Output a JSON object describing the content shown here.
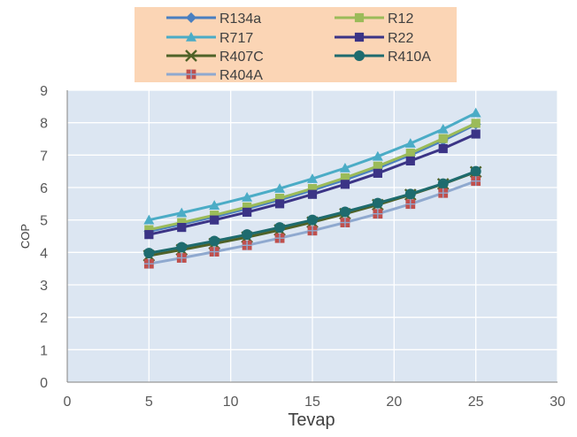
{
  "chart_data": {
    "type": "line",
    "xlabel": "Tevap",
    "ylabel": "COP",
    "xlim": [
      0,
      30
    ],
    "ylim": [
      0,
      9
    ],
    "xticks": [
      0,
      5,
      10,
      15,
      20,
      25,
      30
    ],
    "yticks": [
      0,
      1,
      2,
      3,
      4,
      5,
      6,
      7,
      8,
      9
    ],
    "grid": true,
    "legend_position": "top",
    "x": [
      5,
      7,
      9,
      11,
      13,
      15,
      17,
      19,
      21,
      23,
      25
    ],
    "series": [
      {
        "name": "R134a",
        "color": "#4a7fc0",
        "marker": "diamond",
        "values": [
          4.65,
          4.87,
          5.1,
          5.35,
          5.62,
          5.92,
          6.24,
          6.6,
          7.0,
          7.45,
          7.95
        ]
      },
      {
        "name": "R12",
        "color": "#9bbb59",
        "marker": "square",
        "values": [
          4.7,
          4.92,
          5.15,
          5.4,
          5.67,
          5.97,
          6.3,
          6.66,
          7.06,
          7.51,
          7.98
        ]
      },
      {
        "name": "R717",
        "color": "#4bacc6",
        "marker": "triangle",
        "values": [
          5.0,
          5.22,
          5.45,
          5.7,
          5.97,
          6.27,
          6.6,
          6.96,
          7.36,
          7.8,
          8.3
        ]
      },
      {
        "name": "R22",
        "color": "#3b3486",
        "marker": "square",
        "values": [
          4.55,
          4.77,
          5.0,
          5.24,
          5.5,
          5.79,
          6.1,
          6.44,
          6.82,
          7.2,
          7.65
        ]
      },
      {
        "name": "R407C",
        "color": "#4f6228",
        "marker": "x",
        "values": [
          3.9,
          4.08,
          4.27,
          4.47,
          4.69,
          4.93,
          5.19,
          5.47,
          5.78,
          6.11,
          6.48
        ]
      },
      {
        "name": "R410A",
        "color": "#1e6b6e",
        "marker": "circle",
        "values": [
          3.98,
          4.16,
          4.35,
          4.55,
          4.77,
          5.0,
          5.25,
          5.52,
          5.8,
          6.12,
          6.5
        ]
      },
      {
        "name": "R404A",
        "color": "#8fa9cf",
        "marker": "square-cross",
        "values": [
          3.65,
          3.83,
          4.02,
          4.22,
          4.44,
          4.67,
          4.92,
          5.19,
          5.49,
          5.83,
          6.2
        ]
      }
    ]
  },
  "colors": {
    "plot_bg": "#dce6f2",
    "legend_bg": "#fbd5b5",
    "grid": "#ffffff",
    "axis": "#7f7f7f",
    "tick_text": "#595959",
    "marker_red": "#c0504d"
  }
}
